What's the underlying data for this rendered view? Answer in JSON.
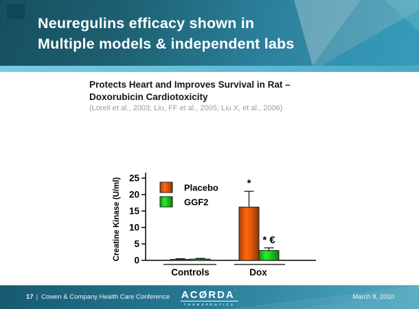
{
  "header": {
    "title_line1": "Neuregulins efficacy shown in",
    "title_line2": "Multiple models & independent labs"
  },
  "content": {
    "heading_line1": "Protects Heart and Improves Survival in Rat –",
    "heading_line2": "Doxorubicin Cardiotoxicity",
    "citation": "(Lorell et al., 2003; Liu, FF et al., 2005; Liu X, et al., 2006)"
  },
  "chart_data": {
    "type": "bar",
    "title": "",
    "xlabel": "",
    "ylabel": "Creatine Kinase (U/ml)",
    "ylim": [
      0,
      25
    ],
    "yticks": [
      0,
      5,
      10,
      15,
      20,
      25
    ],
    "categories": [
      "Controls",
      "Dox"
    ],
    "series": [
      {
        "name": "Placebo",
        "color": "#E2570A",
        "values": [
          0.3,
          16.2
        ],
        "errors": [
          0.2,
          4.8
        ],
        "annotations": [
          "",
          "*"
        ]
      },
      {
        "name": "GGF2",
        "color": "#1FC51F",
        "values": [
          0.4,
          3.0
        ],
        "errors": [
          0.2,
          0.8
        ],
        "annotations": [
          "",
          "* €"
        ]
      }
    ],
    "legend_position": "top-left",
    "grid": false
  },
  "footer": {
    "slide_number": "17",
    "separator": "|",
    "conference": "Cowen & Company Health Care Conference",
    "logo_text": "ACØRDA",
    "logo_mark": "´",
    "logo_subtext": "THERAPEUTICS",
    "date": "March 8, 2010"
  },
  "colors": {
    "header_teal_dark": "#16505F",
    "header_teal_light": "#3E99B4",
    "accent_strip": "#64C0D7",
    "placebo_orange": "#E2570A",
    "ggf2_green": "#1FC51F",
    "citation_gray": "#9B9B9B"
  }
}
